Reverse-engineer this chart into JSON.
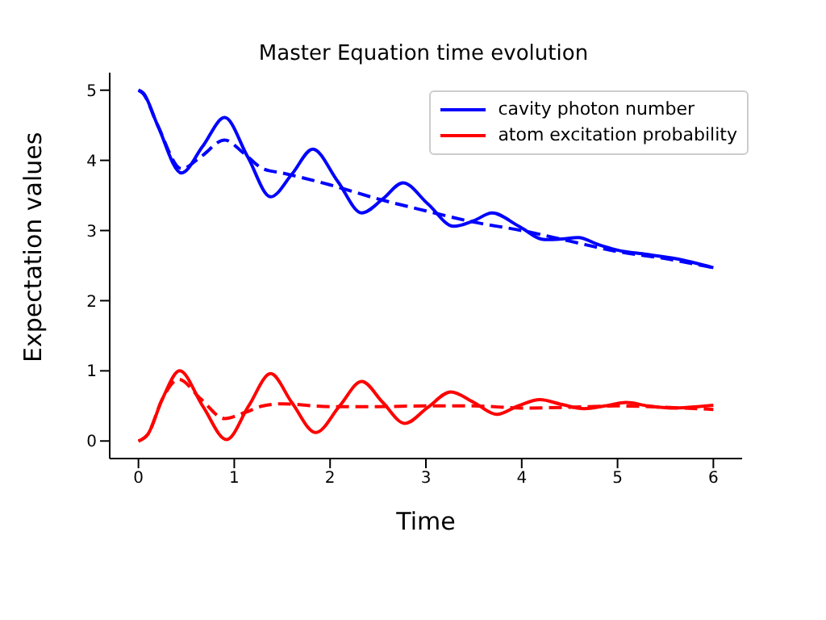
{
  "chart_data": {
    "type": "line",
    "title": "Master Equation time evolution",
    "xlabel": "Time",
    "ylabel": "Expectation values",
    "xlim": [
      -0.3,
      6.3
    ],
    "ylim": [
      -0.25,
      5.25
    ],
    "xticks": [
      0,
      1,
      2,
      3,
      4,
      5,
      6
    ],
    "yticks": [
      0,
      1,
      2,
      3,
      4,
      5
    ],
    "legend": "top right",
    "grid": false,
    "series": [
      {
        "name": "cavity photon number",
        "color": "#0000ff",
        "line_style": "solid",
        "x": [
          0,
          0.05,
          0.2,
          0.45,
          0.67,
          0.9,
          1.14,
          1.38,
          1.6,
          1.82,
          2.08,
          2.33,
          2.55,
          2.76,
          3.02,
          3.29,
          3.5,
          3.69,
          3.97,
          4.24,
          4.42,
          4.59,
          4.8,
          5.0,
          5.3,
          5.6,
          6.0
        ],
        "values": [
          5.0,
          4.96,
          4.5,
          3.82,
          4.2,
          4.61,
          4.05,
          3.48,
          3.8,
          4.16,
          3.7,
          3.25,
          3.45,
          3.68,
          3.38,
          3.06,
          3.14,
          3.25,
          3.06,
          2.87,
          2.88,
          2.9,
          2.8,
          2.72,
          2.66,
          2.6,
          2.47
        ]
      },
      {
        "color": "#0000ff",
        "line_style": "dashed",
        "x": [
          0,
          0.05,
          0.2,
          0.45,
          0.65,
          0.9,
          1.1,
          1.3,
          1.5,
          2.0,
          2.5,
          3.0,
          3.5,
          4.0,
          4.5,
          5.0,
          5.5,
          6.0
        ],
        "values": [
          5.0,
          4.95,
          4.5,
          3.88,
          4.05,
          4.29,
          4.1,
          3.88,
          3.82,
          3.65,
          3.45,
          3.28,
          3.12,
          3.0,
          2.85,
          2.7,
          2.6,
          2.47
        ]
      },
      {
        "name": "atom excitation probability",
        "color": "#ff0000",
        "line_style": "solid",
        "x": [
          0,
          0.1,
          0.25,
          0.43,
          0.67,
          0.92,
          1.15,
          1.38,
          1.6,
          1.85,
          2.1,
          2.33,
          2.55,
          2.78,
          3.02,
          3.26,
          3.5,
          3.74,
          3.96,
          4.19,
          4.42,
          4.65,
          4.87,
          5.09,
          5.32,
          5.56,
          6.0
        ],
        "values": [
          0,
          0.1,
          0.6,
          1.0,
          0.5,
          0.02,
          0.5,
          0.96,
          0.55,
          0.12,
          0.5,
          0.85,
          0.55,
          0.25,
          0.48,
          0.7,
          0.55,
          0.38,
          0.5,
          0.59,
          0.52,
          0.46,
          0.5,
          0.55,
          0.5,
          0.47,
          0.51
        ]
      },
      {
        "color": "#ff0000",
        "line_style": "dashed",
        "x": [
          0,
          0.1,
          0.25,
          0.42,
          0.65,
          0.9,
          1.1,
          1.3,
          1.5,
          2.0,
          2.5,
          3.0,
          3.5,
          4.0,
          4.5,
          5.0,
          5.5,
          6.0
        ],
        "values": [
          0,
          0.1,
          0.6,
          0.88,
          0.6,
          0.32,
          0.4,
          0.5,
          0.53,
          0.49,
          0.49,
          0.5,
          0.5,
          0.47,
          0.48,
          0.5,
          0.48,
          0.45
        ]
      }
    ]
  }
}
